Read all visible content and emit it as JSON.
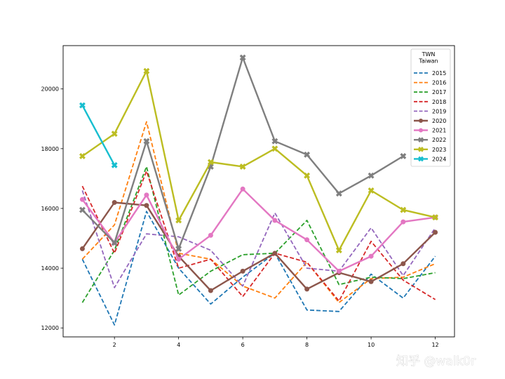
{
  "watermark": "知乎 @walk0r",
  "chart_data": {
    "type": "line",
    "legend": {
      "title_lines": [
        "TWN",
        "Taiwan"
      ],
      "placement": "top-right"
    },
    "x": [
      1,
      2,
      3,
      4,
      5,
      6,
      7,
      8,
      9,
      10,
      11,
      12
    ],
    "xticks": [
      2,
      4,
      6,
      8,
      10,
      12
    ],
    "xlim": [
      0.4,
      12.6
    ],
    "yticks": [
      12000,
      14000,
      16000,
      18000,
      20000
    ],
    "ylim": [
      11700,
      21450
    ],
    "grid": false,
    "series": [
      {
        "name": "2015",
        "style": "dashed",
        "marker": "none",
        "color": "#1f77b4",
        "values": [
          14300,
          12100,
          15900,
          14000,
          12800,
          13700,
          14500,
          12600,
          12550,
          13800,
          13000,
          14400
        ]
      },
      {
        "name": "2016",
        "style": "dashed",
        "marker": "none",
        "color": "#ff7f0e",
        "values": [
          14300,
          15450,
          18900,
          14500,
          14300,
          13400,
          13000,
          14200,
          12850,
          13650,
          13700,
          14150
        ]
      },
      {
        "name": "2017",
        "style": "dashed",
        "marker": "none",
        "color": "#2ca02c",
        "values": [
          12850,
          14600,
          17400,
          13100,
          13900,
          14450,
          14500,
          15600,
          13450,
          13700,
          13650,
          13850
        ]
      },
      {
        "name": "2018",
        "style": "dashed",
        "marker": "none",
        "color": "#d62728",
        "values": [
          16750,
          14500,
          17250,
          14000,
          14300,
          13050,
          14500,
          14200,
          12900,
          14900,
          13600,
          12950
        ]
      },
      {
        "name": "2019",
        "style": "dashed",
        "marker": "none",
        "color": "#9467bd",
        "values": [
          16600,
          13350,
          15150,
          15050,
          14600,
          13400,
          15850,
          14000,
          13900,
          15350,
          13750,
          15350
        ]
      },
      {
        "name": "2020",
        "style": "solid",
        "marker": "circle",
        "color": "#8c564b",
        "values": [
          14650,
          16200,
          16100,
          14400,
          13250,
          13900,
          14500,
          13300,
          13850,
          13550,
          14150,
          15200
        ]
      },
      {
        "name": "2021",
        "style": "solid",
        "marker": "circle",
        "color": "#e377c2",
        "values": [
          16300,
          14850,
          16450,
          14300,
          15100,
          16650,
          15600,
          14950,
          13900,
          14400,
          15550,
          15700
        ]
      },
      {
        "name": "2022",
        "style": "solid",
        "marker": "x",
        "color": "#7f7f7f",
        "values": [
          15950,
          14850,
          18250,
          14650,
          17400,
          21050,
          18250,
          17800,
          16500,
          17100,
          17750,
          null
        ]
      },
      {
        "name": "2023",
        "style": "solid",
        "marker": "x",
        "color": "#bcbd22",
        "values": [
          17750,
          18500,
          20600,
          15600,
          17550,
          17400,
          18000,
          17100,
          14600,
          16600,
          15950,
          15700
        ]
      },
      {
        "name": "2024",
        "style": "solid",
        "marker": "x",
        "color": "#17becf",
        "values": [
          19450,
          17450,
          null,
          null,
          null,
          null,
          null,
          null,
          null,
          null,
          null,
          null
        ]
      }
    ]
  }
}
